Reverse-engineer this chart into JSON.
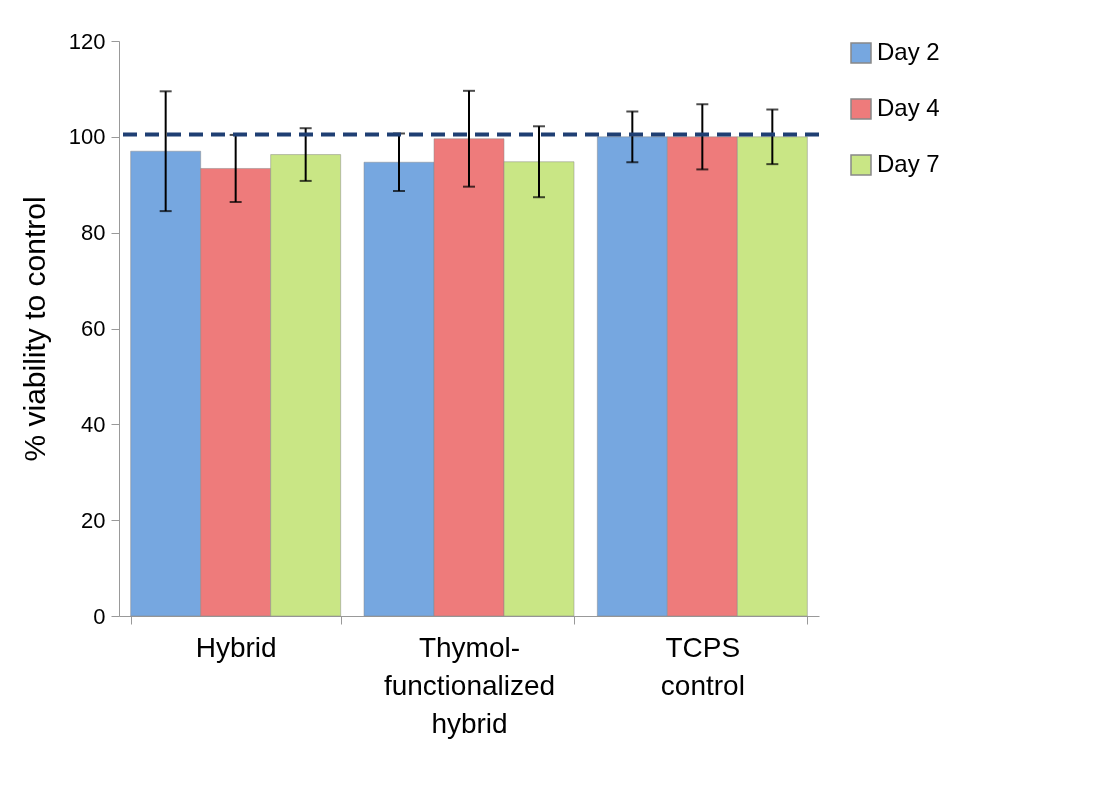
{
  "chart_data": {
    "type": "bar",
    "ylabel": "% viability to control",
    "categories": [
      "Hybrid",
      "Thymol-functionalized hybrid",
      "TCPS control"
    ],
    "series": [
      {
        "name": "Day 2",
        "color": "#76a7e0",
        "values": [
          97,
          94.7,
          100
        ],
        "errors": [
          12.5,
          6,
          5.3
        ]
      },
      {
        "name": "Day 4",
        "color": "#ee7b7b",
        "values": [
          93.4,
          99.6,
          100
        ],
        "errors": [
          7,
          10,
          6.8
        ]
      },
      {
        "name": "Day 7",
        "color": "#c9e685",
        "values": [
          96.3,
          94.8,
          100
        ],
        "errors": [
          5.5,
          7.4,
          5.7
        ]
      }
    ],
    "ylim": [
      0,
      120
    ],
    "yticks": [
      0,
      20,
      40,
      60,
      80,
      100,
      120
    ],
    "grid": false,
    "legend": "right",
    "ref_lines": [
      {
        "axis": "y",
        "value": 100.5,
        "color": "#1f3f73",
        "line_style": "dashed"
      }
    ]
  }
}
